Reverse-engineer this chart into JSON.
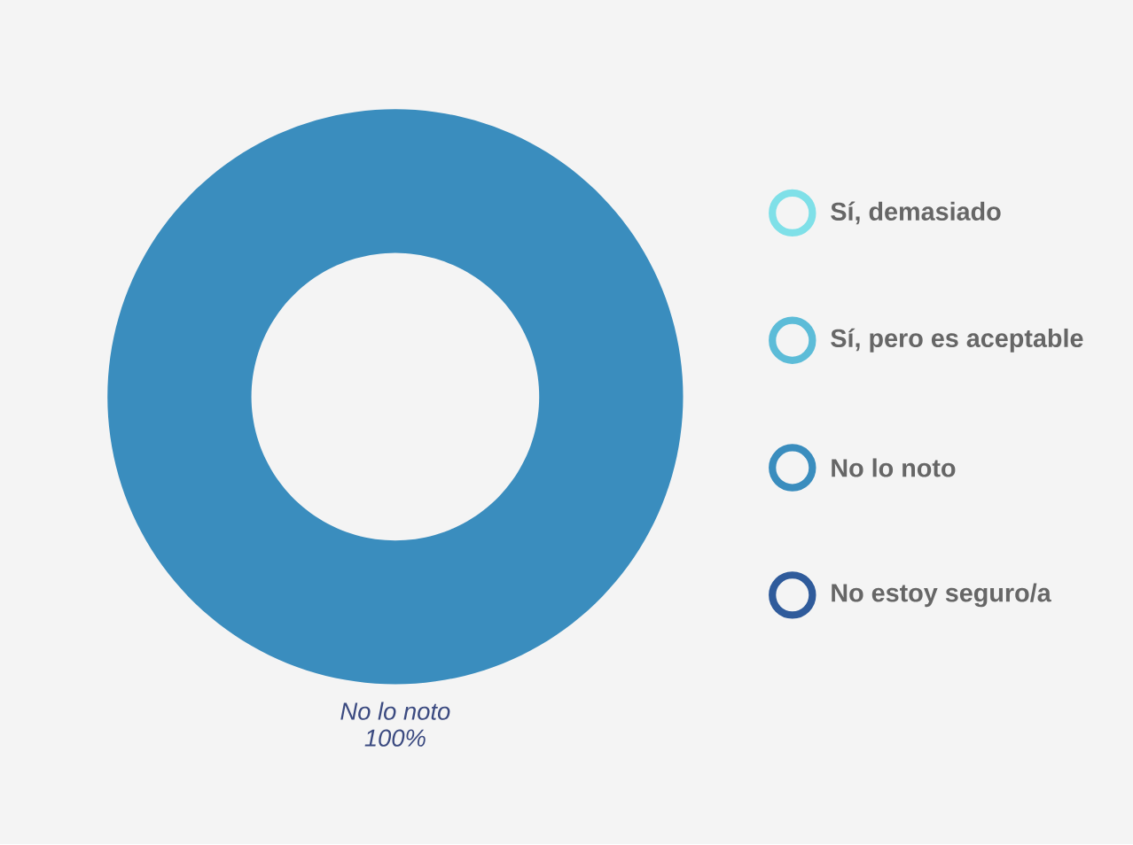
{
  "chart_data": {
    "type": "donut",
    "categories": [
      "Sí, demasiado",
      "Sí, pero es aceptable",
      "No lo noto",
      "No estoy seguro/a"
    ],
    "values": [
      0,
      0,
      100,
      0
    ],
    "colors": [
      "#7fe0e8",
      "#5cbcd8",
      "#3a8dbe",
      "#2f5b9b"
    ],
    "value_labels": [
      null,
      null,
      "100%",
      null
    ],
    "legend": "right"
  }
}
